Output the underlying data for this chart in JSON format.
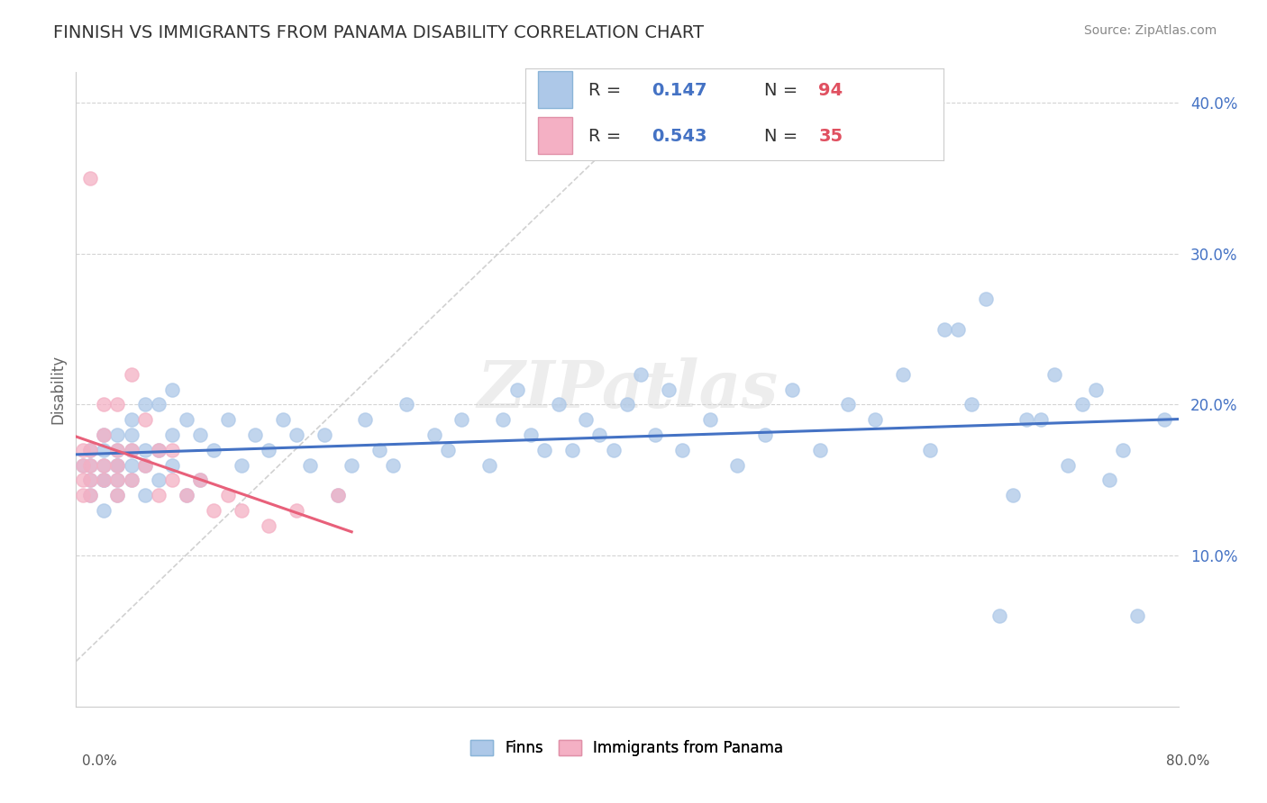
{
  "title": "FINNISH VS IMMIGRANTS FROM PANAMA DISABILITY CORRELATION CHART",
  "source_text": "Source: ZipAtlas.com",
  "ylabel": "Disability",
  "xlim": [
    0.0,
    0.8
  ],
  "ylim": [
    0.0,
    0.42
  ],
  "finns_R": 0.147,
  "finns_N": 94,
  "panama_R": 0.543,
  "panama_N": 35,
  "finns_color": "#adc8e8",
  "panama_color": "#f4b0c4",
  "finns_line_color": "#4472c4",
  "panama_line_color": "#e8607a",
  "watermark_text": "ZIPatlas",
  "legend_label_finns": "Finns",
  "legend_label_panama": "Immigrants from Panama",
  "finns_x": [
    0.005,
    0.01,
    0.01,
    0.01,
    0.01,
    0.02,
    0.02,
    0.02,
    0.02,
    0.02,
    0.02,
    0.03,
    0.03,
    0.03,
    0.03,
    0.03,
    0.03,
    0.04,
    0.04,
    0.04,
    0.04,
    0.04,
    0.05,
    0.05,
    0.05,
    0.05,
    0.06,
    0.06,
    0.06,
    0.07,
    0.07,
    0.07,
    0.08,
    0.08,
    0.09,
    0.09,
    0.1,
    0.11,
    0.12,
    0.13,
    0.14,
    0.15,
    0.16,
    0.17,
    0.18,
    0.19,
    0.2,
    0.21,
    0.22,
    0.23,
    0.24,
    0.26,
    0.27,
    0.28,
    0.3,
    0.31,
    0.32,
    0.33,
    0.34,
    0.35,
    0.36,
    0.37,
    0.38,
    0.39,
    0.4,
    0.41,
    0.42,
    0.43,
    0.44,
    0.46,
    0.48,
    0.5,
    0.52,
    0.54,
    0.56,
    0.58,
    0.6,
    0.62,
    0.64,
    0.66,
    0.68,
    0.7,
    0.72,
    0.74,
    0.76,
    0.63,
    0.65,
    0.67,
    0.69,
    0.71,
    0.73,
    0.75,
    0.77,
    0.79
  ],
  "finns_y": [
    0.16,
    0.14,
    0.15,
    0.16,
    0.17,
    0.13,
    0.15,
    0.16,
    0.17,
    0.18,
    0.15,
    0.14,
    0.15,
    0.16,
    0.17,
    0.18,
    0.16,
    0.15,
    0.16,
    0.17,
    0.18,
    0.19,
    0.14,
    0.16,
    0.17,
    0.2,
    0.15,
    0.17,
    0.2,
    0.16,
    0.18,
    0.21,
    0.14,
    0.19,
    0.15,
    0.18,
    0.17,
    0.19,
    0.16,
    0.18,
    0.17,
    0.19,
    0.18,
    0.16,
    0.18,
    0.14,
    0.16,
    0.19,
    0.17,
    0.16,
    0.2,
    0.18,
    0.17,
    0.19,
    0.16,
    0.19,
    0.21,
    0.18,
    0.17,
    0.2,
    0.17,
    0.19,
    0.18,
    0.17,
    0.2,
    0.22,
    0.18,
    0.21,
    0.17,
    0.19,
    0.16,
    0.18,
    0.21,
    0.17,
    0.2,
    0.19,
    0.22,
    0.17,
    0.25,
    0.27,
    0.14,
    0.19,
    0.16,
    0.21,
    0.17,
    0.25,
    0.2,
    0.06,
    0.19,
    0.22,
    0.2,
    0.15,
    0.06,
    0.19
  ],
  "panama_x": [
    0.005,
    0.005,
    0.005,
    0.005,
    0.01,
    0.01,
    0.01,
    0.01,
    0.01,
    0.02,
    0.02,
    0.02,
    0.02,
    0.03,
    0.03,
    0.03,
    0.03,
    0.03,
    0.04,
    0.04,
    0.04,
    0.05,
    0.05,
    0.06,
    0.06,
    0.07,
    0.07,
    0.08,
    0.09,
    0.1,
    0.11,
    0.12,
    0.14,
    0.16,
    0.19
  ],
  "panama_y": [
    0.14,
    0.15,
    0.16,
    0.17,
    0.14,
    0.15,
    0.16,
    0.17,
    0.35,
    0.15,
    0.16,
    0.18,
    0.2,
    0.14,
    0.15,
    0.16,
    0.17,
    0.2,
    0.15,
    0.17,
    0.22,
    0.16,
    0.19,
    0.14,
    0.17,
    0.15,
    0.17,
    0.14,
    0.15,
    0.13,
    0.14,
    0.13,
    0.12,
    0.13,
    0.14
  ],
  "ghost_line_x": [
    0.0,
    0.42
  ],
  "ghost_line_y": [
    0.03,
    0.4
  ]
}
